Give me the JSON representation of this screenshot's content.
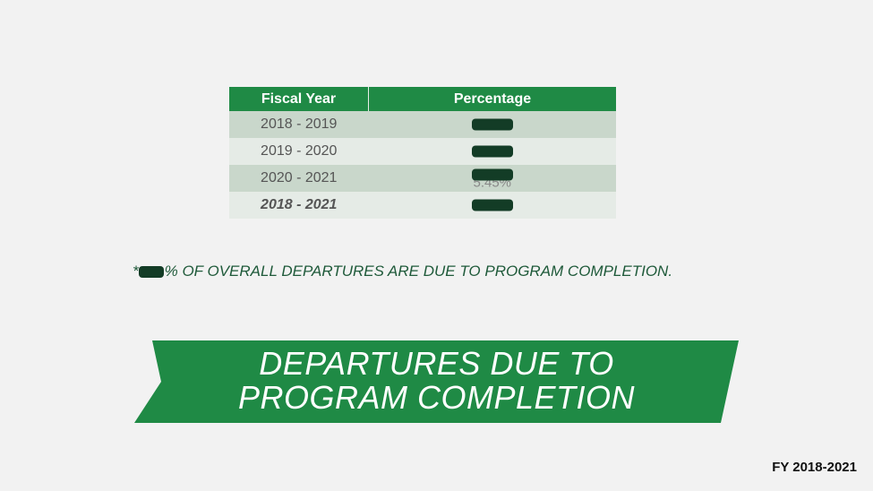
{
  "table": {
    "headers": [
      "Fiscal Year",
      "Percentage"
    ],
    "rows": [
      {
        "year": "2018 - 2019",
        "percentage_visible": "%"
      },
      {
        "year": "2019 - 2020",
        "percentage_visible": "%"
      },
      {
        "year": "2020 - 2021",
        "percentage_visible": "5.45%"
      },
      {
        "year": "2018 - 2021",
        "percentage_visible": ""
      }
    ]
  },
  "note": {
    "prefix": "*",
    "text": "% OF OVERALL DEPARTURES ARE DUE TO PROGRAM COMPLETION."
  },
  "banner": {
    "line1": "DEPARTURES DUE TO",
    "line2": "PROGRAM COMPLETION"
  },
  "footer": {
    "label": "FY 2018-2021"
  },
  "colors": {
    "header_green": "#1f8a45",
    "banner_green": "#1f8a45",
    "row_dark": "#c9d7cb",
    "row_light": "#e5ebe6",
    "redaction": "#133c26",
    "note_text": "#1f5a3a"
  }
}
